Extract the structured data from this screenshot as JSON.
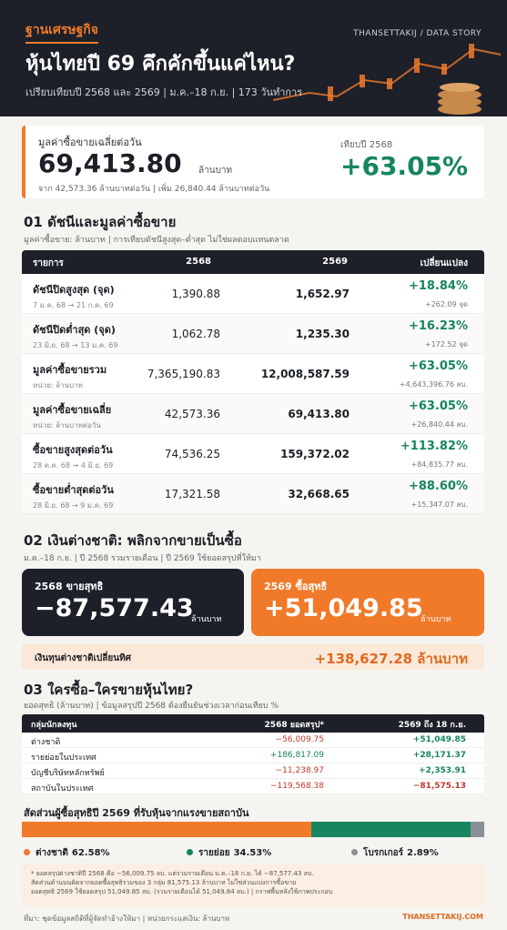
{
  "header": {
    "brand": "ฐานเศรษฐกิจ",
    "tag": "THANSETTAKIJ / DATA STORY",
    "title": "หุ้นไทยปี 69 คึกคักขึ้นแค่ไหน?",
    "subtitle": "เปรียบเทียบปี 2568 และ 2569 | ม.ค.–18 ก.ย. | 173 วันทำการ"
  },
  "key": {
    "label": "มูลค่าซื้อขายเฉลี่ยต่อวัน",
    "value": "69,413.80",
    "unit": "ล้านบาท",
    "detail": "จาก 42,573.36 ล้านบาทต่อวัน | เพิ่ม 26,840.44 ล้านบาทต่อวัน",
    "compare_label": "เทียบปี 2568",
    "change": "+63.05%"
  },
  "section1": {
    "title": "01 ดัชนีและมูลค่าซื้อขาย",
    "subtitle": "มูลค่าซื้อขาย: ล้านบาท | การเทียบดัชนีสูงสุด–ต่ำสุด ไม่ใช่ผลตอบแทนตลาด",
    "table": {
      "headers": [
        "รายการ",
        "2568",
        "2569",
        "เปลี่ยนแปลง"
      ],
      "rows": [
        [
          "ดัชนีปิดสูงสุด (จุด)",
          "7 ม.ค. 68 → 21 ก.ค. 69",
          "1,390.88",
          "1,652.97",
          "+18.84%",
          "+262.09 จุด"
        ],
        [
          "ดัชนีปิดต่ำสุด (จุด)",
          "23 มิ.ย. 68 → 13 ม.ค. 69",
          "1,062.78",
          "1,235.30",
          "+16.23%",
          "+172.52 จุด"
        ],
        [
          "มูลค่าซื้อขายรวม",
          "หน่วย: ล้านบาท",
          "7,365,190.83",
          "12,008,587.59",
          "+63.05%",
          "+4,643,396.76 ลบ."
        ],
        [
          "มูลค่าซื้อขายเฉลี่ย",
          "หน่วย: ล้านบาทต่อวัน",
          "42,573.36",
          "69,413.80",
          "+63.05%",
          "+26,840.44 ลบ."
        ],
        [
          "ซื้อขายสูงสุดต่อวัน",
          "28 ต.ค. 68 → 4 มิ.ย. 69",
          "74,536.25",
          "159,372.02",
          "+113.82%",
          "+84,835.77 ลบ."
        ],
        [
          "ซื้อขายต่ำสุดต่อวัน",
          "28 มิ.ย. 68 → 9 ม.ค. 69",
          "17,321.58",
          "32,668.65",
          "+88.60%",
          "+15,347.07 ลบ."
        ]
      ]
    }
  },
  "section2": {
    "title": "02 เงินต่างชาติ: พลิกจากขายเป็นซื้อ",
    "subtitle": "ม.ค.–18 ก.ย. | ปี 2568 รวมรายเดือน | ปี 2569 ใช้ยอดสรุปที่ให้มา",
    "cards": [
      {
        "label": "2568 ขายสุทธิ",
        "value": "−87,577.43",
        "unit": "ล้านบาท"
      },
      {
        "label": "2569 ซื้อสุทธิ",
        "value": "+51,049.85",
        "unit": "ล้านบาท"
      }
    ],
    "swing": {
      "label": "เงินทุนต่างชาติเปลี่ยนทิศ",
      "value": "+138,627.28 ล้านบาท"
    }
  },
  "section3": {
    "title": "03 ใครซื้อ–ใครขายหุ้นไทย?",
    "subtitle": "ยอดสุทธิ (ล้านบาท) | ข้อมูลสรุปปี 2568 ต้องยืนยันช่วงเวลาก่อนเทียบ %",
    "table": {
      "headers": [
        "กลุ่มนักลงทุน",
        "2568 ยอดสรุป*",
        "2569 ถึง 18 ก.ย."
      ],
      "rows": [
        [
          "ต่างชาติ",
          "−56,009.75",
          "+51,049.85"
        ],
        [
          "รายย่อยในประเทศ",
          "+186,817.09",
          "+28,171.37"
        ],
        [
          "บัญชีบริษัทหลักทรัพย์",
          "−11,238.97",
          "+2,353.91"
        ],
        [
          "สถาบันในประเทศ",
          "−119,568.38",
          "−81,575.13"
        ]
      ]
    }
  },
  "share": {
    "title": "สัดส่วนผู้ซื้อสุทธิปี 2569 ที่รับหุ้นจากแรงขายสถาบัน",
    "segments": [
      {
        "name": "ต่างชาติ",
        "value": 62.58,
        "label": "62.58%",
        "color": "#f07a2a"
      },
      {
        "name": "รายย่อย",
        "value": 34.53,
        "label": "34.53%",
        "color": "#17855f"
      },
      {
        "name": "โบรกเกอร์",
        "value": 2.89,
        "label": "2.89%",
        "color": "#8a8f98"
      }
    ]
  },
  "notes": [
    "* ยอดสรุปต่างชาติปี 2568 คือ −56,009.75 ลบ. แต่รวมรายเดือน ม.ค.–18 ก.ย. ได้ −87,577.43 ลบ.",
    "สัดส่วนด้านบนคิดจากยอดซื้อสุทธิรวมของ 3 กลุ่ม 81,575.13 ล้านบาท ไม่ใช่ส่วนแบ่งการซื้อขาย",
    "ยอดสุทธิ 2569 ใช้ยอดสรุป 51,049.85 ลบ. (รวมรายเดือนได้ 51,049.84 ลบ.) | กราฟพื้นหลังใช้ภาพประกอบ"
  ],
  "footer": {
    "source": "ที่มา: ชุดข้อมูลสถิติที่ผู้จัดทำอ้างให้มา | หน่วยกระแสเงิน: ล้านบาท",
    "site": "THANSETTAKIJ.COM"
  }
}
